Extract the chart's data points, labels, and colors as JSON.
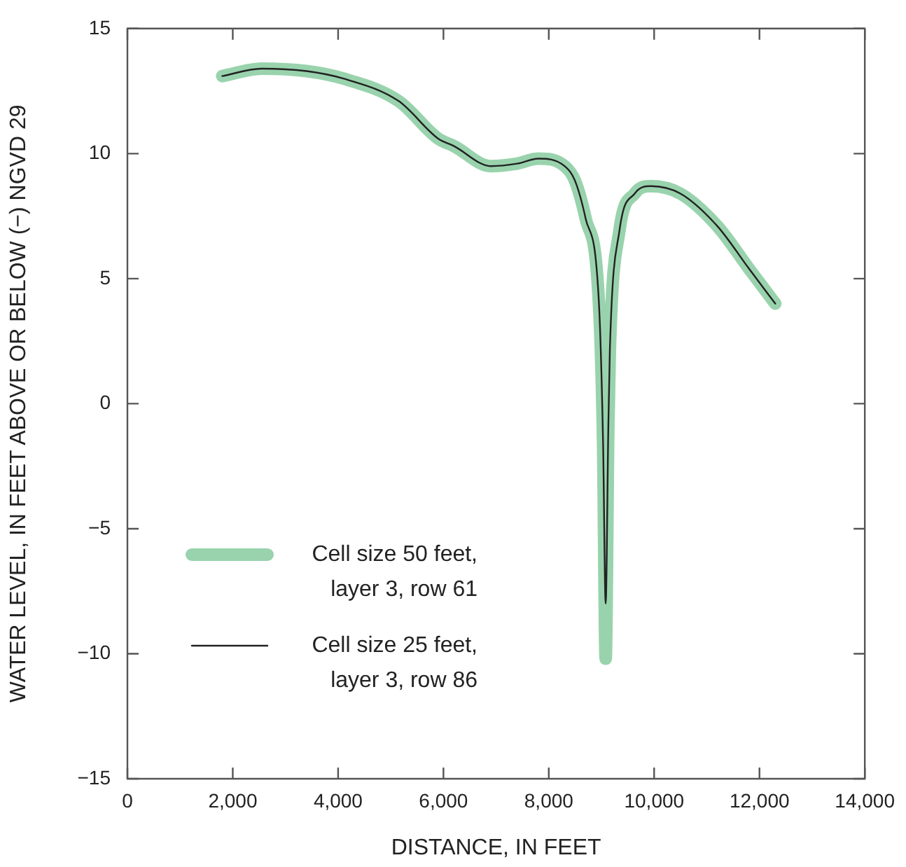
{
  "chart_data": {
    "type": "line",
    "xlabel": "DISTANCE, IN FEET",
    "ylabel": "WATER LEVEL, IN FEET ABOVE OR BELOW (−) NGVD 29",
    "xlim": [
      0,
      14000
    ],
    "xticks": [
      0,
      {
        "value": 2000,
        "label": "2,000"
      },
      {
        "value": 4000,
        "label": "4,000"
      },
      {
        "value": 6000,
        "label": "6,000"
      },
      {
        "value": 8000,
        "label": "8,000"
      },
      {
        "value": 10000,
        "label": "10,000"
      },
      {
        "value": 12000,
        "label": "12,000"
      },
      {
        "value": 14000,
        "label": "14,000"
      }
    ],
    "ylim": [
      -15,
      15
    ],
    "yticks": [
      {
        "value": -15,
        "label": "−15"
      },
      {
        "value": -10,
        "label": "−10"
      },
      {
        "value": -5,
        "label": "−5"
      },
      0,
      5,
      10,
      15
    ],
    "grid": false,
    "legend": "bottom left",
    "marker": "none",
    "line_style": "solid",
    "series": [
      {
        "name": "Cell size 50 feet, layer 3, row 61",
        "color": "#99d3ad",
        "x": [
          1800,
          2550,
          3400,
          4100,
          5150,
          5900,
          6200,
          6900,
          7400,
          7800,
          8300,
          8500,
          8700,
          8950,
          9030,
          9080,
          9130,
          9160,
          9340,
          9630,
          9940,
          10500,
          11200,
          11800,
          12300
        ],
        "values": [
          13.1,
          13.4,
          13.3,
          13.0,
          12.1,
          10.6,
          10.3,
          9.5,
          9.6,
          9.8,
          9.5,
          8.9,
          7.4,
          4.1,
          -1.5,
          -10.2,
          -1,
          2.2,
          6.9,
          8.4,
          8.7,
          8.4,
          7.1,
          5.4,
          4.0
        ]
      },
      {
        "name": "Cell size 25 feet, layer 3, row 86",
        "color": "#222222",
        "x": [
          1800,
          2550,
          3400,
          4100,
          5150,
          5900,
          6200,
          6900,
          7400,
          7800,
          8300,
          8500,
          8700,
          8950,
          9030,
          9080,
          9130,
          9160,
          9340,
          9630,
          9940,
          10500,
          11200,
          11800,
          12300
        ],
        "values": [
          13.1,
          13.4,
          13.3,
          13.0,
          12.1,
          10.6,
          10.3,
          9.5,
          9.6,
          9.8,
          9.5,
          8.9,
          7.4,
          4.1,
          -1.5,
          -8.0,
          -1,
          2.2,
          6.9,
          8.4,
          8.7,
          8.4,
          7.1,
          5.4,
          4.0
        ]
      }
    ]
  }
}
